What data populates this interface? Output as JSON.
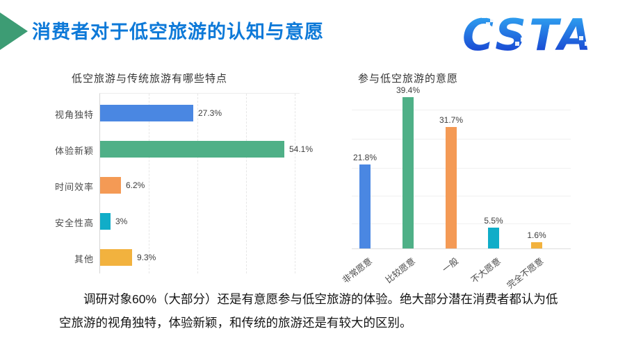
{
  "header": {
    "title": "消费者对于低空旅游的认知与意愿",
    "title_color": "#0d79d8",
    "arrow_color": "#3d9c74",
    "logo_text": "CSTA",
    "logo_gradient_top": "#33b1f5",
    "logo_gradient_bottom": "#1433cc"
  },
  "chart_data": [
    {
      "type": "bar",
      "orientation": "horizontal",
      "title": "低空旅游与传统旅游有哪些特点",
      "categories": [
        "视角独特",
        "体验新颖",
        "时间效率",
        "安全性高",
        "其他"
      ],
      "values": [
        27.3,
        54.1,
        6.2,
        3,
        9.3
      ],
      "value_labels": [
        "27.3%",
        "54.1%",
        "6.2%",
        "3%",
        "9.3%"
      ],
      "colors": [
        "#4a87e2",
        "#4fb087",
        "#f49a55",
        "#10adc8",
        "#f2b23e"
      ],
      "xlim": [
        0,
        58
      ],
      "grid": "vertical-dashed",
      "legend": "none"
    },
    {
      "type": "bar",
      "orientation": "vertical",
      "title": "参与低空旅游的意愿",
      "categories": [
        "非常愿意",
        "比较愿意",
        "一般",
        "不大愿意",
        "完全不愿意"
      ],
      "values": [
        21.8,
        39.4,
        31.7,
        5.5,
        1.6
      ],
      "value_labels": [
        "21.8%",
        "39.4%",
        "31.7%",
        "5.5%",
        "1.6%"
      ],
      "colors": [
        "#4a87e2",
        "#4fb087",
        "#f49a55",
        "#10adc8",
        "#f2b23e"
      ],
      "ylim": [
        0,
        39.4
      ],
      "grid": "horizontal",
      "legend": "none"
    }
  ],
  "footer": {
    "text": "调研对象60%（大部分）还是有意愿参与低空旅游的体验。绝大部分潜在消费者都认为低空旅游的视角独特，体验新颖，和传统的旅游还是有较大的区别。"
  }
}
